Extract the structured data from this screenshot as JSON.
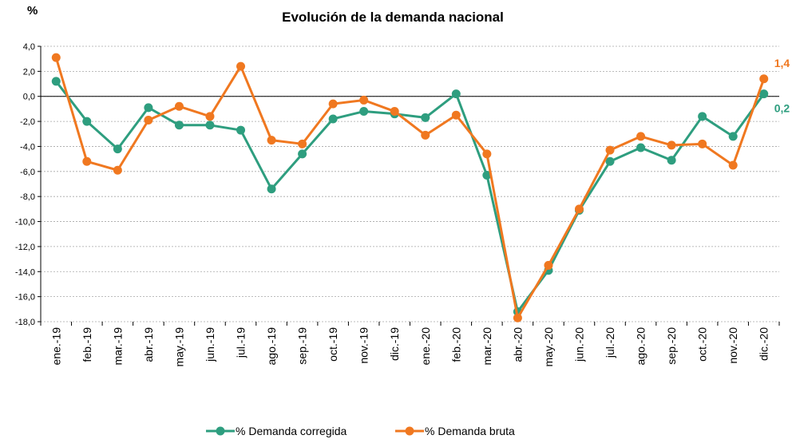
{
  "chart_data": {
    "type": "line",
    "title": "Evolución de la demanda nacional",
    "ylabel": "%",
    "ylim": [
      -18,
      4
    ],
    "yticks": [
      "4,0",
      "2,0",
      "0,0",
      "-2,0",
      "-4,0",
      "-6,0",
      "-8,0",
      "-10,0",
      "-12,0",
      "-14,0",
      "-16,0",
      "-18,0"
    ],
    "grid": true,
    "legend": "bottom",
    "categories": [
      "ene.-19",
      "feb.-19",
      "mar.-19",
      "abr.-19",
      "may.-19",
      "jun.-19",
      "jul.-19",
      "ago.-19",
      "sep.-19",
      "oct.-19",
      "nov.-19",
      "dic.-19",
      "ene.-20",
      "feb.-20",
      "mar.-20",
      "abr.-20",
      "may.-20",
      "jun.-20",
      "jul.-20",
      "ago.-20",
      "sep.-20",
      "oct.-20",
      "nov.-20",
      "dic.-20"
    ],
    "series": [
      {
        "name": "% Demanda corregida",
        "color": "#2e9e7f",
        "end_label": "0,2",
        "values": [
          1.2,
          -2.0,
          -4.2,
          -0.9,
          -2.3,
          -2.3,
          -2.7,
          -7.4,
          -4.6,
          -1.8,
          -1.2,
          -1.4,
          -1.7,
          0.2,
          -6.3,
          -17.2,
          -13.9,
          -9.1,
          -5.2,
          -4.1,
          -5.1,
          -1.6,
          -3.2,
          0.2
        ]
      },
      {
        "name": "% Demanda bruta",
        "color": "#f07820",
        "end_label": "1,4",
        "values": [
          3.1,
          -5.2,
          -5.9,
          -1.9,
          -0.8,
          -1.6,
          2.4,
          -3.5,
          -3.8,
          -0.6,
          -0.3,
          -1.2,
          -3.1,
          -1.5,
          -4.6,
          -17.7,
          -13.5,
          -9.0,
          -4.3,
          -3.2,
          -3.9,
          -3.8,
          -5.5,
          1.4
        ]
      }
    ]
  }
}
